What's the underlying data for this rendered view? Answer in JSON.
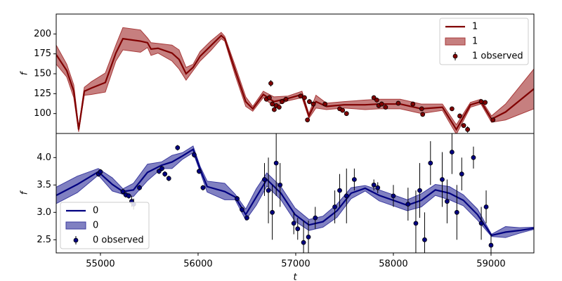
{
  "chart_data": [
    {
      "type": "line",
      "ylabel": "f",
      "legend": "upper right",
      "ylim": [
        75,
        225
      ],
      "yticks": [
        100,
        125,
        150,
        175,
        200
      ],
      "xlim": [
        54547,
        59439
      ],
      "series": [
        {
          "name": "1",
          "kind": "line",
          "color": "#800000",
          "x": [
            54547,
            54655,
            54727,
            54777,
            54835,
            54907,
            55050,
            55158,
            55230,
            55410,
            55482,
            55518,
            55590,
            55733,
            55805,
            55877,
            55949,
            56021,
            56129,
            56237,
            56273,
            56380,
            56488,
            56560,
            56668,
            56776,
            56920,
            57064,
            57135,
            57207,
            57315,
            57495,
            57711,
            57855,
            58070,
            58286,
            58502,
            58645,
            58789,
            58897,
            59005,
            59149,
            59439
          ],
          "values": [
            174,
            154,
            128,
            80,
            128,
            132,
            139,
            176,
            194,
            191,
            189,
            181,
            182,
            176,
            168,
            150,
            158,
            172,
            185,
            198,
            194,
            154,
            115,
            106,
            124,
            115,
            119,
            124,
            97,
            115,
            109,
            111,
            111,
            112,
            112,
            106,
            108,
            80,
            111,
            115,
            93,
            102,
            131
          ]
        },
        {
          "name": "1",
          "kind": "band",
          "color": "#a83a3a",
          "x": [
            54547,
            54655,
            54727,
            54777,
            54835,
            54907,
            55050,
            55158,
            55230,
            55410,
            55482,
            55518,
            55590,
            55733,
            55805,
            55877,
            55949,
            56021,
            56129,
            56237,
            56273,
            56380,
            56488,
            56560,
            56668,
            56776,
            56920,
            57064,
            57135,
            57207,
            57315,
            57495,
            57711,
            57855,
            58070,
            58286,
            58502,
            58645,
            58789,
            58897,
            59005,
            59149,
            59439
          ],
          "lower": [
            162,
            146,
            120,
            77,
            123,
            124,
            127,
            166,
            180,
            177,
            183,
            173,
            176,
            166,
            156,
            142,
            154,
            166,
            179,
            194,
            191,
            148,
            109,
            103,
            120,
            109,
            116,
            120,
            94,
            107,
            105,
            107,
            105,
            106,
            106,
            100,
            104,
            74,
            108,
            112,
            89,
            92,
            106
          ],
          "upper": [
            186,
            162,
            136,
            83,
            133,
            140,
            151,
            186,
            208,
            205,
            195,
            189,
            188,
            186,
            180,
            158,
            162,
            178,
            191,
            202,
            197,
            160,
            121,
            109,
            128,
            121,
            122,
            128,
            100,
            123,
            113,
            115,
            117,
            118,
            118,
            112,
            112,
            86,
            114,
            118,
            97,
            112,
            156
          ]
        },
        {
          "name": "1 observed",
          "kind": "points",
          "color": "#800000",
          "x": [
            56700,
            56730,
            56745,
            56760,
            56780,
            56800,
            56830,
            56860,
            56900,
            57050,
            57090,
            57120,
            57140,
            57180,
            57300,
            57450,
            57480,
            57520,
            57800,
            57830,
            57850,
            57880,
            57920,
            58050,
            58200,
            58290,
            58300,
            58600,
            58680,
            58720,
            58760,
            58900,
            58940,
            59020
          ],
          "values": [
            118,
            120,
            138,
            112,
            105,
            110,
            108,
            115,
            118,
            122,
            120,
            92,
            115,
            112,
            112,
            106,
            104,
            100,
            120,
            117,
            110,
            112,
            108,
            113,
            112,
            106,
            99,
            106,
            97,
            85,
            80,
            115,
            114,
            92
          ],
          "errors": [
            3,
            3,
            4,
            3,
            3,
            3,
            3,
            3,
            2,
            3,
            3,
            3,
            3,
            3,
            2,
            2,
            2,
            2,
            3,
            3,
            3,
            3,
            3,
            2,
            2,
            2,
            2,
            2,
            3,
            3,
            4,
            3,
            2,
            3
          ]
        }
      ]
    },
    {
      "type": "line",
      "ylabel": "f",
      "xlabel": "t",
      "legend": "lower left",
      "ylim": [
        2.26,
        4.44
      ],
      "yticks": [
        2.5,
        {
          "value": 3,
          "label": "3.0"
        },
        3.5,
        {
          "value": 4,
          "label": "4.0"
        }
      ],
      "xlim": [
        54547,
        59439
      ],
      "xticks": [
        55000,
        56000,
        57000,
        58000,
        59000
      ],
      "series": [
        {
          "name": "0",
          "kind": "line",
          "color": "#000080",
          "x": [
            54547,
            54763,
            54978,
            55122,
            55230,
            55338,
            55482,
            55626,
            55733,
            55841,
            55949,
            56021,
            56093,
            56273,
            56380,
            56488,
            56596,
            56704,
            56848,
            56992,
            57135,
            57279,
            57423,
            57567,
            57711,
            57855,
            57999,
            58142,
            58286,
            58430,
            58574,
            58717,
            58861,
            59005,
            59149,
            59293,
            59439
          ],
          "values": [
            3.31,
            3.51,
            3.74,
            3.51,
            3.38,
            3.41,
            3.73,
            3.86,
            3.92,
            4.03,
            4.15,
            3.79,
            3.47,
            3.38,
            3.28,
            2.96,
            3.28,
            3.6,
            3.35,
            2.96,
            2.77,
            2.83,
            3.03,
            3.35,
            3.44,
            3.31,
            3.22,
            3.13,
            3.22,
            3.41,
            3.35,
            3.22,
            2.96,
            2.58,
            2.64,
            2.67,
            2.71
          ]
        },
        {
          "name": "0",
          "kind": "band",
          "color": "#3c3ca0",
          "x": [
            54547,
            54763,
            54978,
            55122,
            55230,
            55338,
            55482,
            55626,
            55733,
            55841,
            55949,
            56021,
            56093,
            56273,
            56380,
            56488,
            56596,
            56704,
            56848,
            56992,
            57135,
            57279,
            57423,
            57567,
            57711,
            57855,
            57999,
            58142,
            58286,
            58430,
            58574,
            58717,
            58861,
            59005,
            59149,
            59293,
            59439
          ],
          "lower": [
            3.16,
            3.36,
            3.68,
            3.39,
            3.33,
            3.29,
            3.58,
            3.8,
            3.8,
            3.97,
            4.09,
            3.74,
            3.37,
            3.23,
            3.23,
            2.86,
            3.13,
            3.48,
            3.23,
            2.84,
            2.67,
            2.73,
            2.91,
            3.25,
            3.39,
            3.21,
            3.12,
            3.03,
            3.1,
            3.31,
            3.23,
            3.12,
            2.86,
            2.56,
            2.54,
            2.62,
            2.69
          ],
          "upper": [
            3.46,
            3.66,
            3.8,
            3.63,
            3.43,
            3.53,
            3.88,
            3.92,
            4.04,
            4.09,
            4.21,
            3.84,
            3.57,
            3.53,
            3.33,
            3.06,
            3.43,
            3.72,
            3.47,
            3.08,
            2.87,
            2.93,
            3.15,
            3.45,
            3.49,
            3.41,
            3.32,
            3.23,
            3.34,
            3.51,
            3.47,
            3.32,
            3.06,
            2.6,
            2.74,
            2.72,
            2.73
          ]
        },
        {
          "name": "0 observed",
          "kind": "points",
          "color": "#000080",
          "x": [
            54980,
            55000,
            55230,
            55260,
            55290,
            55320,
            55340,
            55400,
            55600,
            55630,
            55660,
            55700,
            55790,
            55960,
            56010,
            56050,
            56400,
            56450,
            56500,
            56680,
            56720,
            56760,
            56800,
            56840,
            56980,
            57020,
            57080,
            57130,
            57200,
            57400,
            57450,
            57520,
            57600,
            57800,
            57840,
            58000,
            58150,
            58230,
            58270,
            58320,
            58380,
            58500,
            58550,
            58600,
            58650,
            58700,
            58820,
            58900,
            58950,
            59000
          ],
          "values": [
            3.7,
            3.74,
            3.38,
            3.32,
            3.3,
            3.2,
            3.15,
            3.45,
            3.75,
            3.8,
            3.7,
            3.62,
            4.18,
            4.05,
            3.75,
            3.45,
            3.25,
            3.05,
            2.9,
            3.6,
            3.4,
            3,
            3.9,
            3.5,
            2.8,
            2.7,
            2.45,
            2.55,
            2.9,
            3.1,
            3.4,
            3.3,
            3.6,
            3.5,
            3.45,
            3.3,
            3.15,
            2.8,
            3.4,
            2.5,
            3.9,
            3.6,
            3.2,
            4.1,
            3,
            3.7,
            4,
            2.8,
            3.1,
            2.4
          ],
          "errors": [
            0.05,
            0.05,
            0.05,
            0.05,
            0.05,
            0.1,
            0.1,
            0.05,
            0.05,
            0.05,
            0.05,
            0.05,
            0.05,
            0.05,
            0.05,
            0.05,
            0.05,
            0.05,
            0.05,
            0.3,
            0.6,
            0.5,
            0.6,
            0.4,
            0.2,
            0.2,
            0.4,
            0.3,
            0.2,
            0.3,
            0.3,
            0.5,
            0.2,
            0.1,
            0.1,
            0.2,
            0.3,
            0.6,
            0.5,
            0.5,
            0.4,
            0.5,
            0.4,
            0.4,
            0.5,
            0.3,
            0.2,
            0.3,
            0.3,
            0.2
          ]
        }
      ]
    }
  ]
}
